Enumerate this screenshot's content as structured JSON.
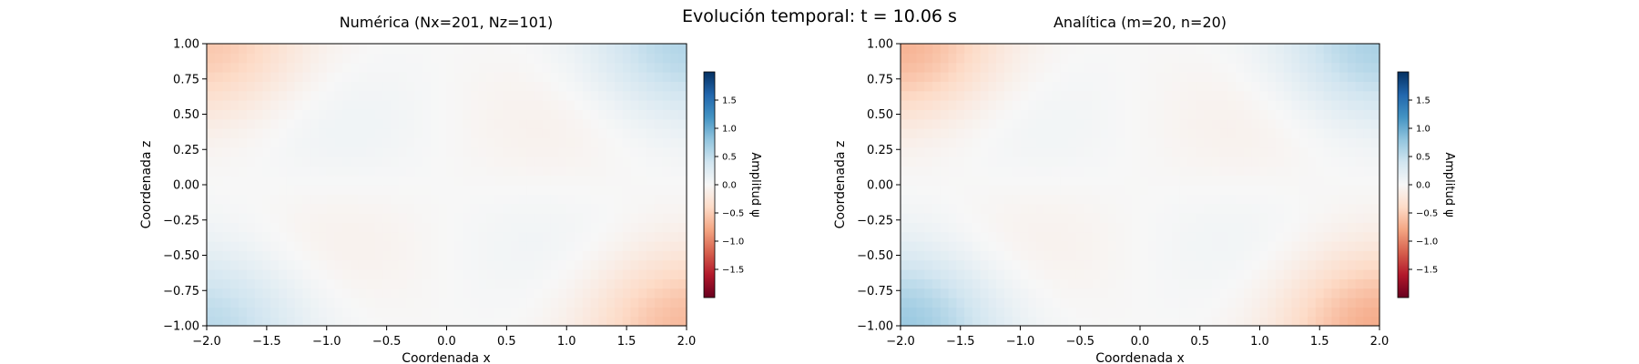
{
  "figure": {
    "suptitle": "Evolución temporal: t = 10.06 s"
  },
  "chart_data": [
    {
      "type": "heatmap",
      "title": "Numérica (Nx=201, Nz=101)",
      "xlabel": "Coordenada x",
      "ylabel": "Coordenada z",
      "xlim": [
        -2.0,
        2.0
      ],
      "ylim": [
        -1.0,
        1.0
      ],
      "x_ticks": [
        "−2.0",
        "−1.5",
        "−1.0",
        "−0.5",
        "0.0",
        "0.5",
        "1.0",
        "1.5",
        "2.0"
      ],
      "y_ticks": [
        "1.00",
        "0.75",
        "0.50",
        "0.25",
        "0.00",
        "−0.25",
        "−0.50",
        "−0.75",
        "−1.00"
      ],
      "colormap": "RdBu",
      "color_range": [
        -2.0,
        2.0
      ],
      "colorbar_label": "Amplitud ψ",
      "colorbar_ticks": [
        "1.5",
        "1.0",
        "0.5",
        "0.0",
        "−0.5",
        "−1.0",
        "−1.5"
      ],
      "features": [
        {
          "x": -2.0,
          "z": 1.0,
          "value": -0.55
        },
        {
          "x": 2.0,
          "z": 1.0,
          "value": 0.6
        },
        {
          "x": -2.0,
          "z": -1.0,
          "value": 0.55
        },
        {
          "x": 2.0,
          "z": -1.0,
          "value": -0.65
        },
        {
          "x": -1.0,
          "z": 0.45,
          "value": 0.12
        },
        {
          "x": 0.95,
          "z": 0.45,
          "value": -0.12
        },
        {
          "x": -1.0,
          "z": -0.45,
          "value": -0.12
        },
        {
          "x": 0.95,
          "z": -0.45,
          "value": 0.1
        }
      ]
    },
    {
      "type": "heatmap",
      "title": "Analítica (m=20, n=20)",
      "xlabel": "Coordenada x",
      "ylabel": "Coordenada z",
      "xlim": [
        -2.0,
        2.0
      ],
      "ylim": [
        -1.0,
        1.0
      ],
      "x_ticks": [
        "−2.0",
        "−1.5",
        "−1.0",
        "−0.5",
        "0.0",
        "0.5",
        "1.0",
        "1.5",
        "2.0"
      ],
      "y_ticks": [
        "1.00",
        "0.75",
        "0.50",
        "0.25",
        "0.00",
        "−0.25",
        "−0.50",
        "−0.75",
        "−1.00"
      ],
      "colormap": "RdBu",
      "color_range": [
        -2.0,
        2.0
      ],
      "colorbar_label": "Amplitud ψ",
      "colorbar_ticks": [
        "1.5",
        "1.0",
        "0.5",
        "0.0",
        "−0.5",
        "−1.0",
        "−1.5"
      ],
      "features": [
        {
          "x": -2.0,
          "z": 1.0,
          "value": -0.7
        },
        {
          "x": 2.0,
          "z": 1.0,
          "value": 0.65
        },
        {
          "x": -2.0,
          "z": -1.0,
          "value": 0.75
        },
        {
          "x": 2.0,
          "z": -1.0,
          "value": -0.75
        },
        {
          "x": -1.0,
          "z": 0.45,
          "value": 0.1
        },
        {
          "x": 0.95,
          "z": 0.45,
          "value": -0.12
        },
        {
          "x": -1.0,
          "z": -0.45,
          "value": -0.12
        },
        {
          "x": 0.95,
          "z": -0.45,
          "value": 0.1
        }
      ]
    }
  ]
}
